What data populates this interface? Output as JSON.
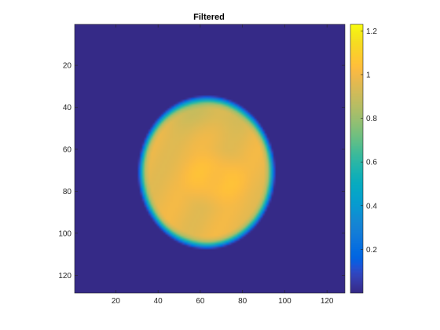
{
  "chart_data": {
    "type": "heatmap",
    "title": "Filtered",
    "colormap": "parula",
    "image_size": [
      128,
      128
    ],
    "xlim": [
      0.5,
      128.5
    ],
    "ylim": [
      0.5,
      128.5
    ],
    "y_direction": "reverse",
    "x_ticks": [
      20,
      40,
      60,
      80,
      100,
      120
    ],
    "x_tick_labels": [
      "20",
      "40",
      "60",
      "80",
      "100",
      "120"
    ],
    "y_ticks": [
      20,
      40,
      60,
      80,
      100,
      120
    ],
    "y_tick_labels": [
      "20",
      "40",
      "60",
      "80",
      "100",
      "120"
    ],
    "clim": [
      0.0,
      1.23
    ],
    "colorbar": {
      "location": "right",
      "ticks": [
        0.2,
        0.4,
        0.6,
        0.8,
        1.0,
        1.2
      ],
      "tick_labels": [
        "0.2",
        "0.4",
        "0.6",
        "0.8",
        "1",
        "1.2"
      ]
    },
    "background_value": 0.0,
    "regions": [
      {
        "name": "head-outline",
        "shape": "ellipse",
        "center_x": 63,
        "center_y": 71,
        "radius_x": 32,
        "radius_y": 36,
        "value": 0.98
      },
      {
        "name": "central-bright-region",
        "shape": "ellipse",
        "center_x": 67,
        "center_y": 74,
        "radius_x": 16,
        "radius_y": 14,
        "value": 1.05
      }
    ]
  }
}
